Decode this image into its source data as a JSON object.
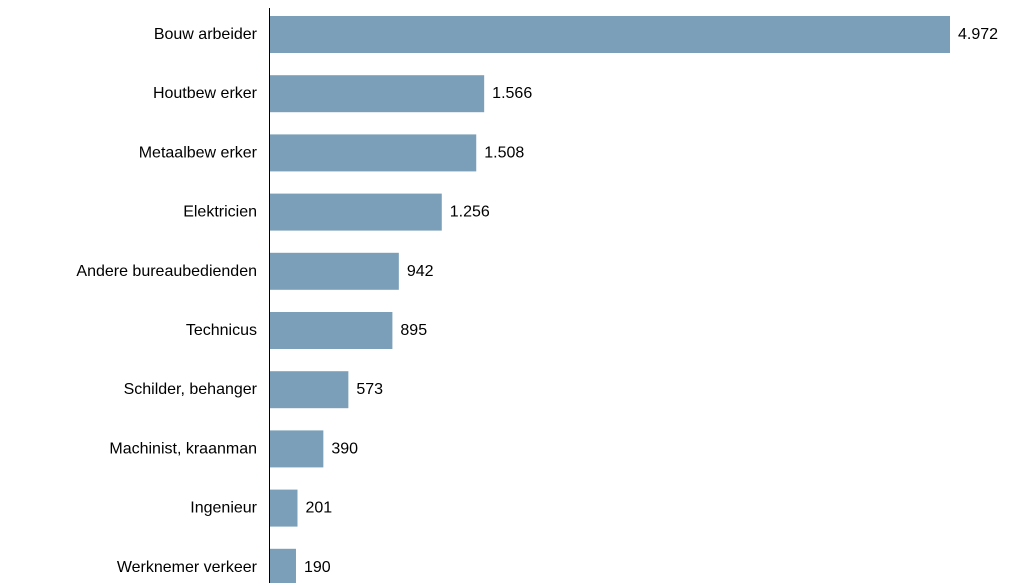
{
  "chart_data": {
    "type": "bar",
    "orientation": "horizontal",
    "categories": [
      "Bouw arbeider",
      "Houtbew erker",
      "Metaalbew erker",
      "Elektricien",
      "Andere bureaubedienden",
      "Technicus",
      "Schilder, behanger",
      "Machinist, kraanman",
      "Ingenieur",
      "Werknemer verkeer"
    ],
    "values": [
      4972,
      1566,
      1508,
      1256,
      942,
      895,
      573,
      390,
      201,
      190
    ],
    "value_labels": [
      "4.972",
      "1.566",
      "1.508",
      "1.256",
      "942",
      "895",
      "573",
      "390",
      "201",
      "190"
    ],
    "title": "",
    "xlabel": "",
    "ylabel": "",
    "xlim": [
      0,
      4972
    ],
    "grid": false,
    "legend": "none",
    "colors": {
      "bar": "#7b9fb8",
      "axis": "#000000",
      "text": "#000000"
    }
  }
}
